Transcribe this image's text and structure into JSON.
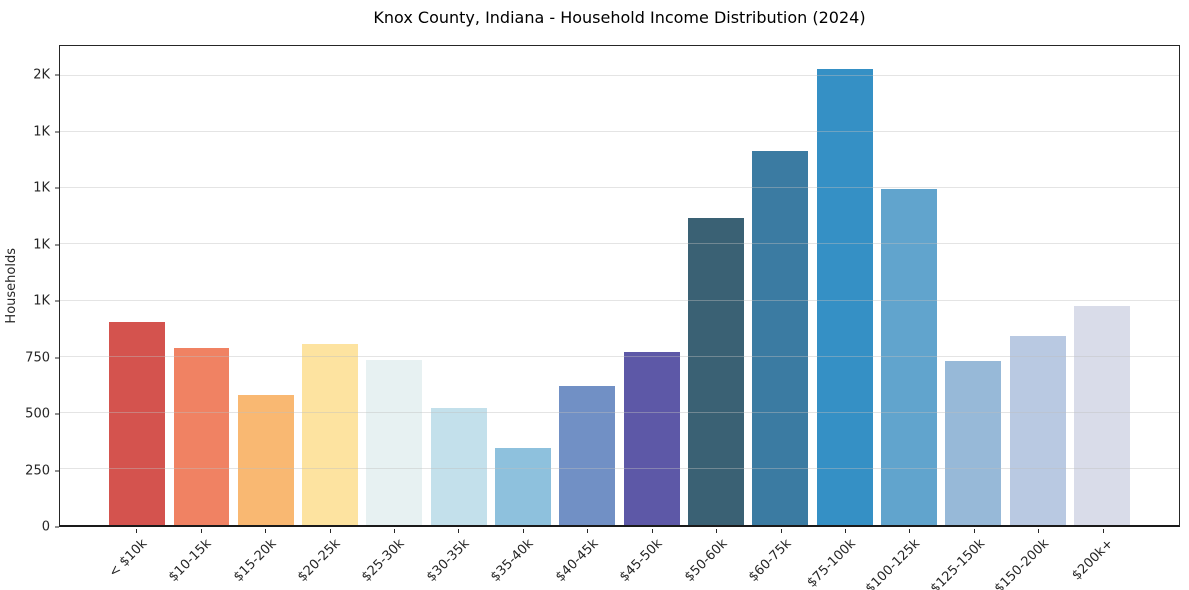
{
  "chart_data": {
    "type": "bar",
    "title": "Knox County, Indiana - Household Income Distribution (2024)",
    "xlabel": "",
    "ylabel": "Households",
    "categories": [
      "< $10k",
      "$10-15k",
      "$15-20k",
      "$20-25k",
      "$25-30k",
      "$30-35k",
      "$35-40k",
      "$40-45k",
      "$45-50k",
      "$50-60k",
      "$60-75k",
      "$75-100k",
      "$100-125k",
      "$125-150k",
      "$150-200k",
      "$200k+"
    ],
    "values": [
      905,
      790,
      580,
      805,
      735,
      520,
      345,
      620,
      770,
      1370,
      1665,
      2030,
      1495,
      730,
      840,
      975
    ],
    "bar_colors": [
      "#d4534e",
      "#f08263",
      "#f9b872",
      "#fde3a0",
      "#e7f1f2",
      "#c3e0eb",
      "#8ec1dd",
      "#7190c5",
      "#5d58a7",
      "#3a6174",
      "#3b7ba2",
      "#3590c5",
      "#61a4cd",
      "#97b9d8",
      "#b9c9e2",
      "#d9dce9"
    ],
    "ylim": [
      0,
      2134
    ],
    "yticks": [
      {
        "value": 0,
        "label": "0"
      },
      {
        "value": 250,
        "label": "250"
      },
      {
        "value": 500,
        "label": "500"
      },
      {
        "value": 750,
        "label": "750"
      },
      {
        "value": 1000,
        "label": "1K"
      },
      {
        "value": 1250,
        "label": "1K"
      },
      {
        "value": 1500,
        "label": "1K"
      },
      {
        "value": 1750,
        "label": "1K"
      },
      {
        "value": 2000,
        "label": "2K"
      }
    ],
    "grid": "horizontal",
    "legend": "none",
    "xtick_rotation_deg": 45
  }
}
